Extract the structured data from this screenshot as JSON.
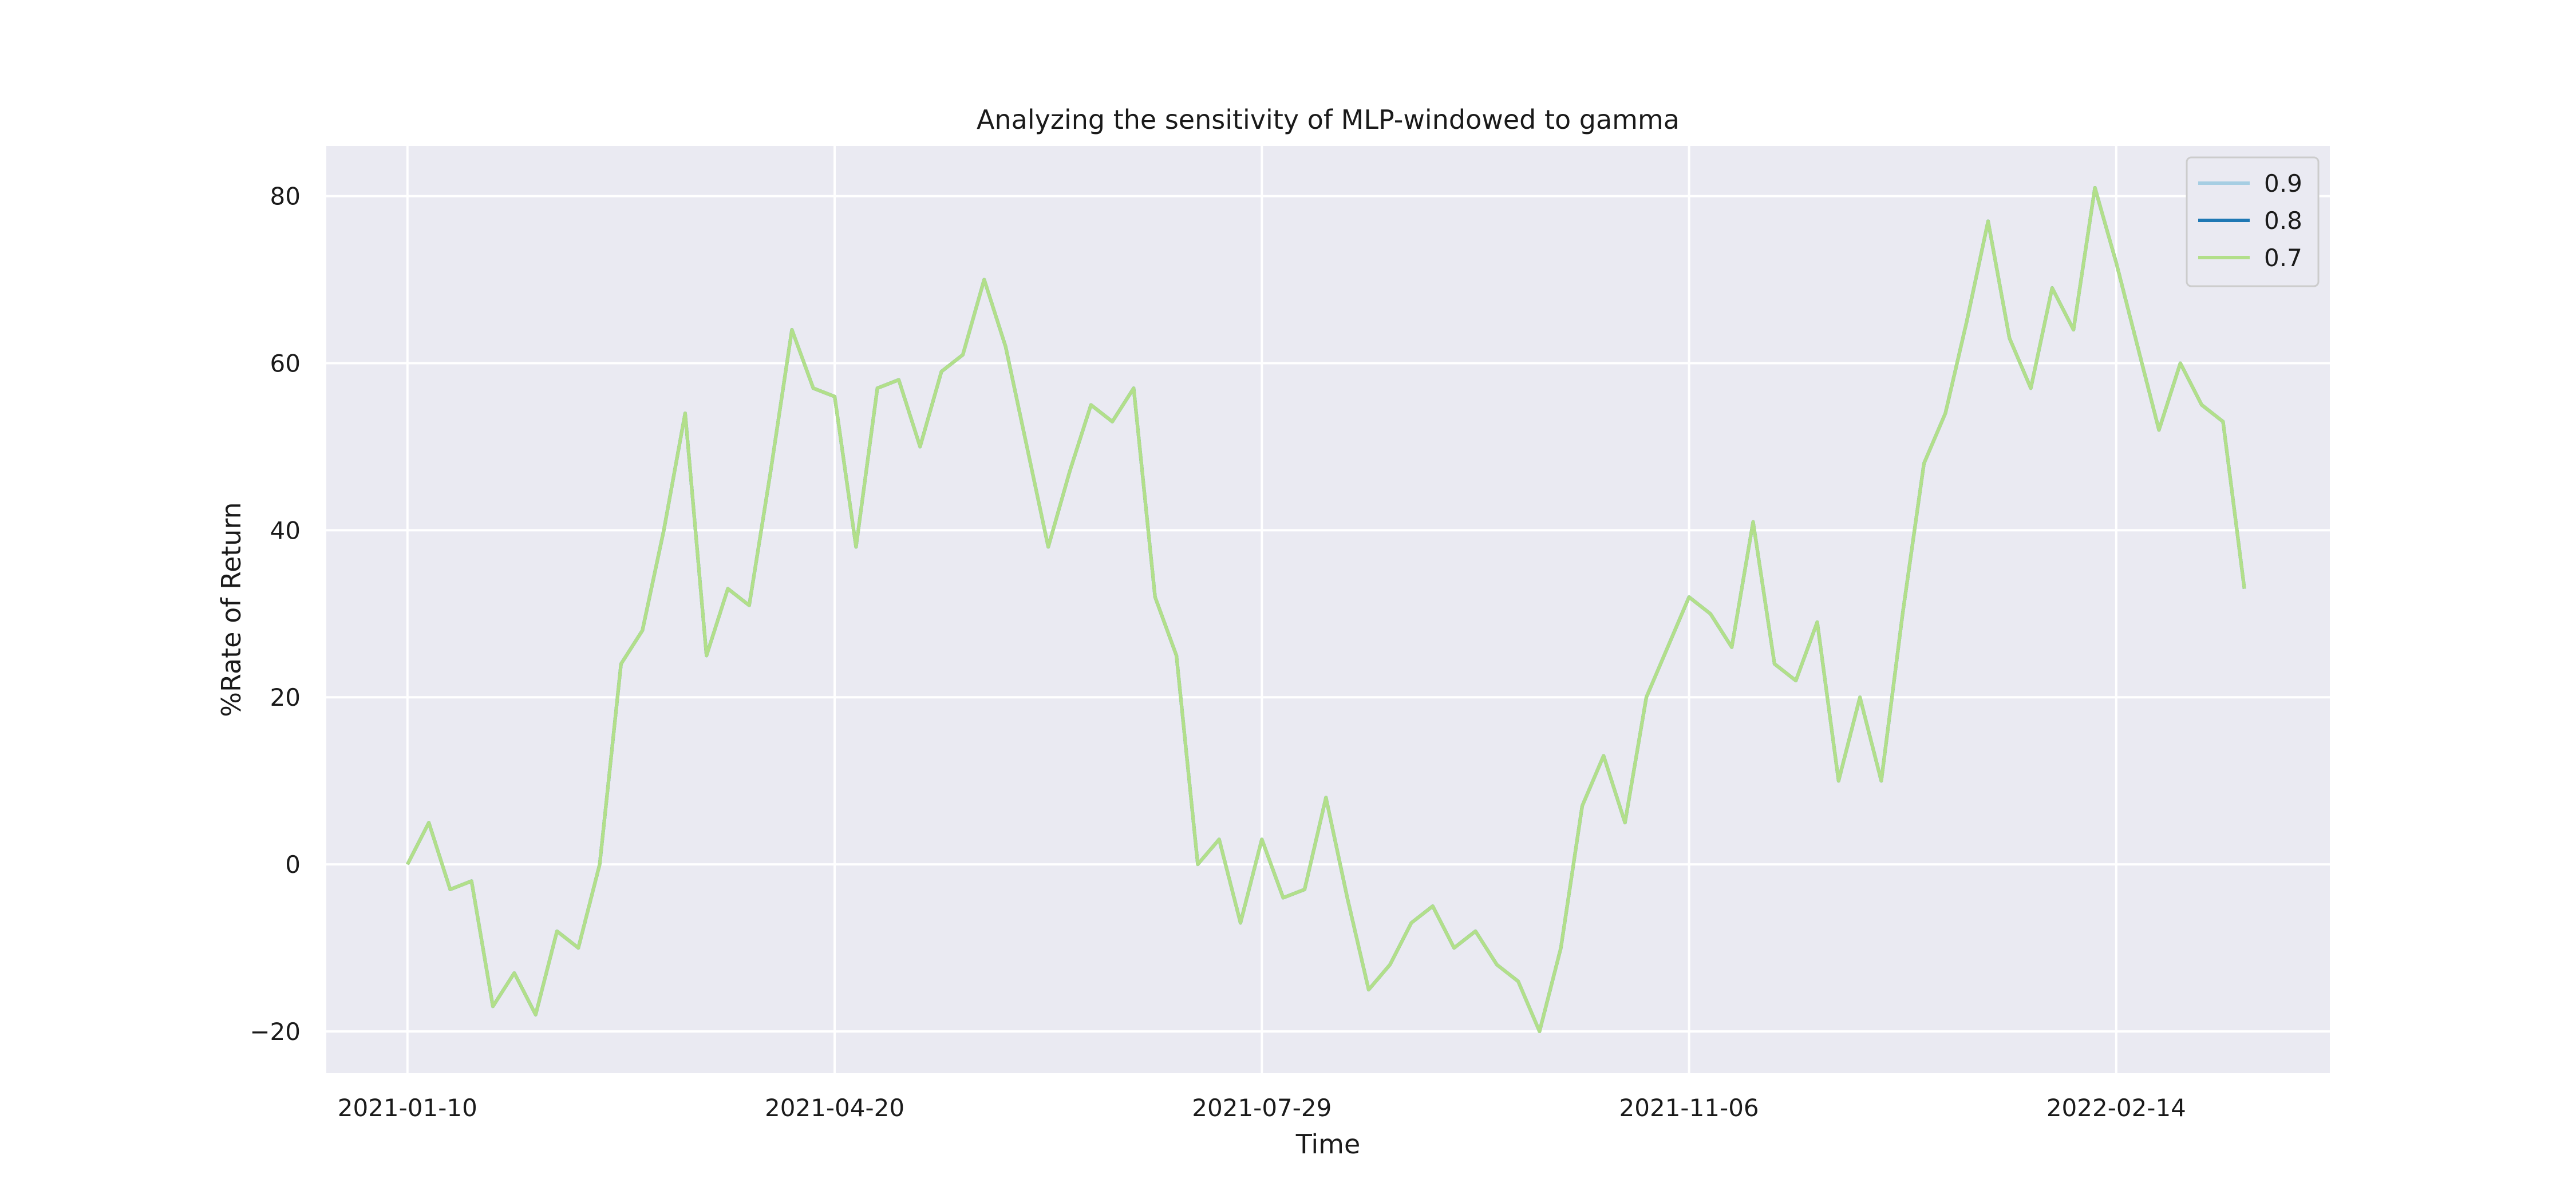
{
  "chart_data": {
    "type": "line",
    "title": "Analyzing the sensitivity of MLP-windowed to gamma",
    "xlabel": "Time",
    "ylabel": "%Rate of Return",
    "x_ticks": [
      "2021-01-10",
      "2021-04-20",
      "2021-07-29",
      "2021-11-06",
      "2022-02-14"
    ],
    "y_ticks": [
      -20,
      0,
      20,
      40,
      60,
      80
    ],
    "xlim": [
      "2020-12-22",
      "2022-04-05"
    ],
    "ylim": [
      -25,
      86
    ],
    "grid": true,
    "legend_position": "top-right",
    "dates": [
      "2021-01-10",
      "2021-01-15",
      "2021-01-20",
      "2021-01-25",
      "2021-01-30",
      "2021-02-04",
      "2021-02-09",
      "2021-02-14",
      "2021-02-19",
      "2021-02-24",
      "2021-03-01",
      "2021-03-06",
      "2021-03-11",
      "2021-03-16",
      "2021-03-21",
      "2021-03-26",
      "2021-03-31",
      "2021-04-05",
      "2021-04-10",
      "2021-04-15",
      "2021-04-20",
      "2021-04-25",
      "2021-04-30",
      "2021-05-05",
      "2021-05-10",
      "2021-05-15",
      "2021-05-20",
      "2021-05-25",
      "2021-05-30",
      "2021-06-04",
      "2021-06-09",
      "2021-06-14",
      "2021-06-19",
      "2021-06-24",
      "2021-06-29",
      "2021-07-04",
      "2021-07-09",
      "2021-07-14",
      "2021-07-19",
      "2021-07-24",
      "2021-07-29",
      "2021-08-03",
      "2021-08-08",
      "2021-08-13",
      "2021-08-18",
      "2021-08-23",
      "2021-08-28",
      "2021-09-02",
      "2021-09-07",
      "2021-09-12",
      "2021-09-17",
      "2021-09-22",
      "2021-09-27",
      "2021-10-02",
      "2021-10-07",
      "2021-10-12",
      "2021-10-17",
      "2021-10-22",
      "2021-10-27",
      "2021-11-01",
      "2021-11-06",
      "2021-11-11",
      "2021-11-16",
      "2021-11-21",
      "2021-11-26",
      "2021-12-01",
      "2021-12-06",
      "2021-12-11",
      "2021-12-16",
      "2021-12-21",
      "2021-12-26",
      "2021-12-31",
      "2022-01-05",
      "2022-01-10",
      "2022-01-15",
      "2022-01-20",
      "2022-01-25",
      "2022-01-30",
      "2022-02-04",
      "2022-02-09",
      "2022-02-14",
      "2022-02-19",
      "2022-02-24",
      "2022-03-01",
      "2022-03-06",
      "2022-03-11",
      "2022-03-16"
    ],
    "series": [
      {
        "name": "0.9",
        "color": "#a6cee3",
        "values": [
          0,
          5,
          -3,
          -2,
          -17,
          -13,
          -18,
          -8,
          -10,
          0,
          24,
          28,
          40,
          54,
          25,
          33,
          31,
          47,
          64,
          57,
          56,
          38,
          57,
          58,
          50,
          59,
          61,
          70,
          62,
          50,
          38,
          47,
          55,
          53,
          57,
          32,
          25,
          0,
          3,
          -7,
          3,
          -4,
          -3,
          8,
          -4,
          -15,
          -12,
          -7,
          -5,
          -10,
          -8,
          -12,
          -14,
          -20,
          -10,
          7,
          13,
          5,
          20,
          26,
          32,
          30,
          26,
          41,
          24,
          22,
          29,
          10,
          20,
          10,
          30,
          48,
          54,
          65,
          77,
          63,
          57,
          69,
          64,
          81,
          72,
          62,
          52,
          60,
          55,
          53,
          33
        ]
      },
      {
        "name": "0.8",
        "color": "#1f78b4",
        "values": [
          0,
          5,
          -3,
          -2,
          -17,
          -13,
          -18,
          -8,
          -10,
          0,
          24,
          28,
          40,
          54,
          25,
          33,
          31,
          47,
          64,
          57,
          56,
          38,
          57,
          58,
          50,
          59,
          61,
          70,
          62,
          50,
          38,
          47,
          55,
          53,
          57,
          32,
          25,
          0,
          3,
          -7,
          3,
          -4,
          -3,
          8,
          -4,
          -15,
          -12,
          -7,
          -5,
          -10,
          -8,
          -12,
          -14,
          -20,
          -10,
          7,
          13,
          5,
          20,
          26,
          32,
          30,
          26,
          41,
          24,
          22,
          29,
          10,
          20,
          10,
          30,
          48,
          54,
          65,
          77,
          63,
          57,
          69,
          64,
          81,
          72,
          62,
          52,
          60,
          55,
          53,
          33
        ]
      },
      {
        "name": "0.7",
        "color": "#b2df8a",
        "values": [
          0,
          5,
          -3,
          -2,
          -17,
          -13,
          -18,
          -8,
          -10,
          0,
          24,
          28,
          40,
          54,
          25,
          33,
          31,
          47,
          64,
          57,
          56,
          38,
          57,
          58,
          50,
          59,
          61,
          70,
          62,
          50,
          38,
          47,
          55,
          53,
          57,
          32,
          25,
          0,
          3,
          -7,
          3,
          -4,
          -3,
          8,
          -4,
          -15,
          -12,
          -7,
          -5,
          -10,
          -8,
          -12,
          -14,
          -20,
          -10,
          7,
          13,
          5,
          20,
          26,
          32,
          30,
          26,
          41,
          24,
          22,
          29,
          10,
          20,
          10,
          30,
          48,
          54,
          65,
          77,
          63,
          57,
          69,
          64,
          81,
          72,
          62,
          52,
          60,
          55,
          53,
          33
        ]
      }
    ]
  },
  "colors": {
    "plot_background": "#eaeaf2",
    "grid": "#ffffff",
    "legend_background": "#eaeaf2",
    "legend_border": "#cccccc"
  }
}
